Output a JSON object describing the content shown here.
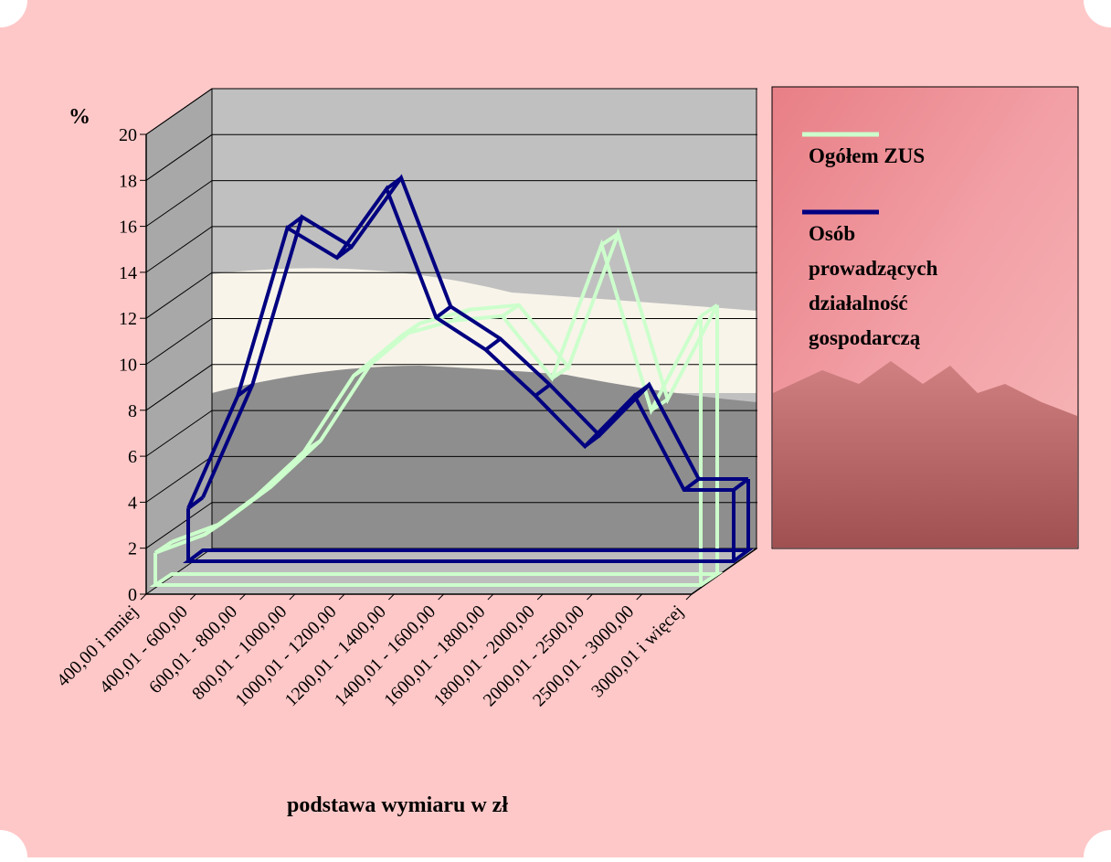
{
  "chart_data": {
    "type": "line3d",
    "y_label": "%",
    "x_label": "podstawa wymiaru w zł",
    "categories": [
      "400,00 i mniej",
      "400,01 - 600,00",
      "600,01 - 800,00",
      "800,01 - 1000,00",
      "1000,01 - 1200,00",
      "1200,01 - 1400,00",
      "1400,01 - 1600,00",
      "1600,01 - 1800,00",
      "1800,01 - 2000,00",
      "2000,01 - 2500,00",
      "2500,01 - 3000,00",
      "3000,01 i więcej"
    ],
    "series": [
      {
        "name": "Ogółem ZUS",
        "color": "#ccffcc",
        "values": [
          1.4,
          2.2,
          3.8,
          5.8,
          9.1,
          10.9,
          11.5,
          11.7,
          9.0,
          14.8,
          7.6,
          11.7
        ]
      },
      {
        "name": "Osób prowadzących działalność gospodarczą",
        "color": "#000080",
        "values": [
          2.3,
          7.2,
          14.5,
          13.2,
          16.2,
          10.6,
          9.2,
          7.2,
          5.0,
          7.2,
          3.1,
          3.1
        ]
      }
    ],
    "ylim": [
      0,
      20
    ],
    "yticks": [
      0,
      2,
      4,
      6,
      8,
      10,
      12,
      14,
      16,
      18,
      20
    ],
    "grid": true,
    "legend": "right"
  }
}
